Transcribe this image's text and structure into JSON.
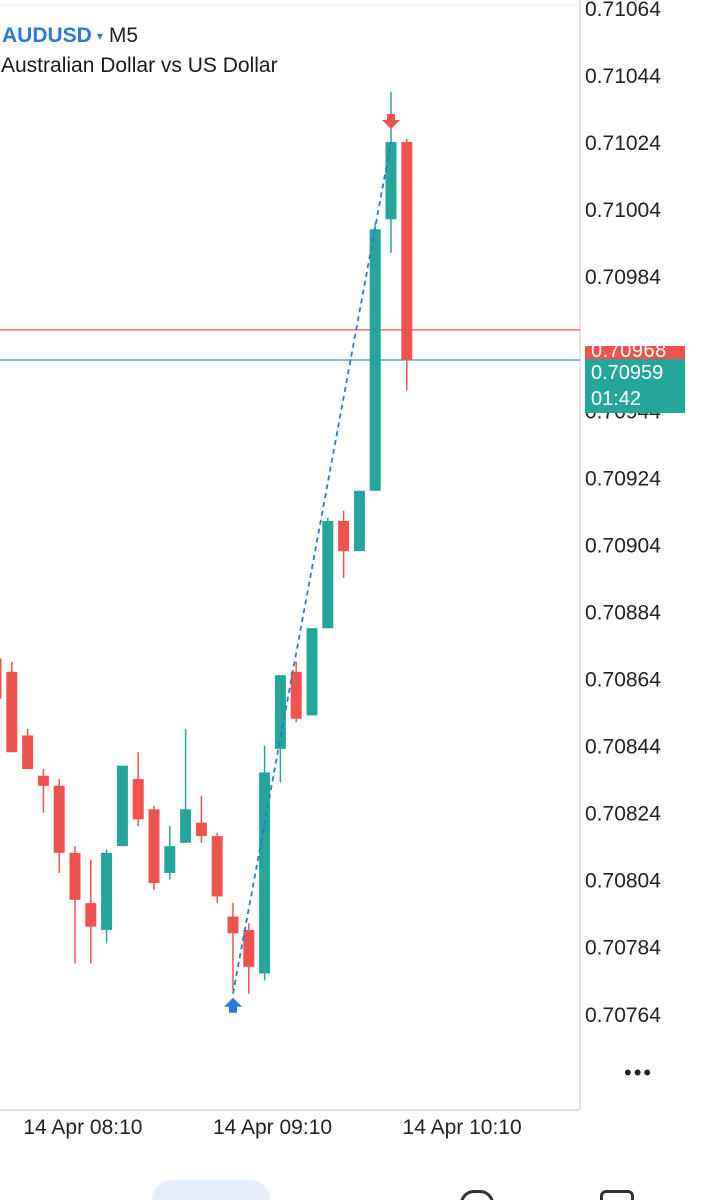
{
  "header": {
    "symbol": "AUDUSD",
    "dropdown_glyph": "▾",
    "timeframe": "M5",
    "description": "Australian Dollar vs US Dollar"
  },
  "price_tags": {
    "bid_price": "0.70959",
    "countdown": "01:42",
    "ask_price": "0.70968",
    "bid_color": "#26a69a",
    "ask_color": "#ef5350"
  },
  "menu": {
    "more_glyph": "•••",
    "more_icon": "more-dots-icon"
  },
  "colors": {
    "bull": "#26a69a",
    "bear": "#ef5350",
    "trade_line": "#2b7ad8",
    "buy_arrow": "#2b7ad8",
    "sell_arrow": "#ef5350",
    "grid": "#dddddd",
    "text": "#222222"
  },
  "chart_data": {
    "type": "candlestick",
    "y_range": [
      0.70752,
      0.71064
    ],
    "y_ticks": [
      "0.71064",
      "0.71044",
      "0.71024",
      "0.71004",
      "0.70984",
      "0.70944",
      "0.70924",
      "0.70904",
      "0.70884",
      "0.70864",
      "0.70844",
      "0.70824",
      "0.70804",
      "0.70784",
      "0.70764"
    ],
    "y_ticks_values": [
      0.71064,
      0.71044,
      0.71024,
      0.71004,
      0.70984,
      0.70944,
      0.70924,
      0.70904,
      0.70884,
      0.70864,
      0.70844,
      0.70824,
      0.70804,
      0.70784,
      0.70764
    ],
    "x_labels": [
      {
        "label": "14 Apr 08:10",
        "index": 5.5
      },
      {
        "label": "14 Apr 09:10",
        "index": 17.5
      },
      {
        "label": "14 Apr 10:10",
        "index": 29.5
      }
    ],
    "candles": [
      {
        "o": 0.7087,
        "h": 0.7088,
        "l": 0.70855,
        "c": 0.70858
      },
      {
        "o": 0.70866,
        "h": 0.70869,
        "l": 0.70844,
        "c": 0.70842
      },
      {
        "o": 0.70847,
        "h": 0.70849,
        "l": 0.70838,
        "c": 0.70837
      },
      {
        "o": 0.70835,
        "h": 0.70837,
        "l": 0.70824,
        "c": 0.70832
      },
      {
        "o": 0.70832,
        "h": 0.70834,
        "l": 0.70806,
        "c": 0.70812
      },
      {
        "o": 0.70812,
        "h": 0.70814,
        "l": 0.70779,
        "c": 0.70798
      },
      {
        "o": 0.70797,
        "h": 0.7081,
        "l": 0.70779,
        "c": 0.7079
      },
      {
        "o": 0.70789,
        "h": 0.70813,
        "l": 0.70785,
        "c": 0.70812
      },
      {
        "o": 0.70814,
        "h": 0.70838,
        "l": 0.70814,
        "c": 0.70838
      },
      {
        "o": 0.70834,
        "h": 0.70842,
        "l": 0.7082,
        "c": 0.70822
      },
      {
        "o": 0.70825,
        "h": 0.70826,
        "l": 0.70801,
        "c": 0.70803
      },
      {
        "o": 0.70806,
        "h": 0.7082,
        "l": 0.70804,
        "c": 0.70814
      },
      {
        "o": 0.70815,
        "h": 0.70849,
        "l": 0.70815,
        "c": 0.70825
      },
      {
        "o": 0.70821,
        "h": 0.70829,
        "l": 0.70815,
        "c": 0.70817
      },
      {
        "o": 0.70817,
        "h": 0.70818,
        "l": 0.70797,
        "c": 0.70799
      },
      {
        "o": 0.70793,
        "h": 0.70797,
        "l": 0.70771,
        "c": 0.70788
      },
      {
        "o": 0.70789,
        "h": 0.70791,
        "l": 0.7077,
        "c": 0.70778
      },
      {
        "o": 0.70776,
        "h": 0.70844,
        "l": 0.70774,
        "c": 0.70836
      },
      {
        "o": 0.70843,
        "h": 0.70865,
        "l": 0.70833,
        "c": 0.70865
      },
      {
        "o": 0.70866,
        "h": 0.70869,
        "l": 0.70851,
        "c": 0.70852
      },
      {
        "o": 0.70853,
        "h": 0.70879,
        "l": 0.70853,
        "c": 0.70879
      },
      {
        "o": 0.70879,
        "h": 0.70912,
        "l": 0.70879,
        "c": 0.70911
      },
      {
        "o": 0.70911,
        "h": 0.70914,
        "l": 0.70894,
        "c": 0.70902
      },
      {
        "o": 0.70902,
        "h": 0.7092,
        "l": 0.70902,
        "c": 0.7092
      },
      {
        "o": 0.7092,
        "h": 0.71,
        "l": 0.7092,
        "c": 0.70998
      },
      {
        "o": 0.71001,
        "h": 0.71039,
        "l": 0.70991,
        "c": 0.71024
      },
      {
        "o": 0.71024,
        "h": 0.71025,
        "l": 0.7095,
        "c": 0.70959
      }
    ],
    "bid": 0.70959,
    "ask": 0.70968,
    "buy_arrow": {
      "index": 15,
      "price": 0.70767
    },
    "sell_arrow": {
      "index": 25,
      "price": 0.7103
    },
    "trade_line": {
      "from_index": 15,
      "from_price": 0.7077,
      "to_index": 25,
      "to_price": 0.71024
    }
  }
}
